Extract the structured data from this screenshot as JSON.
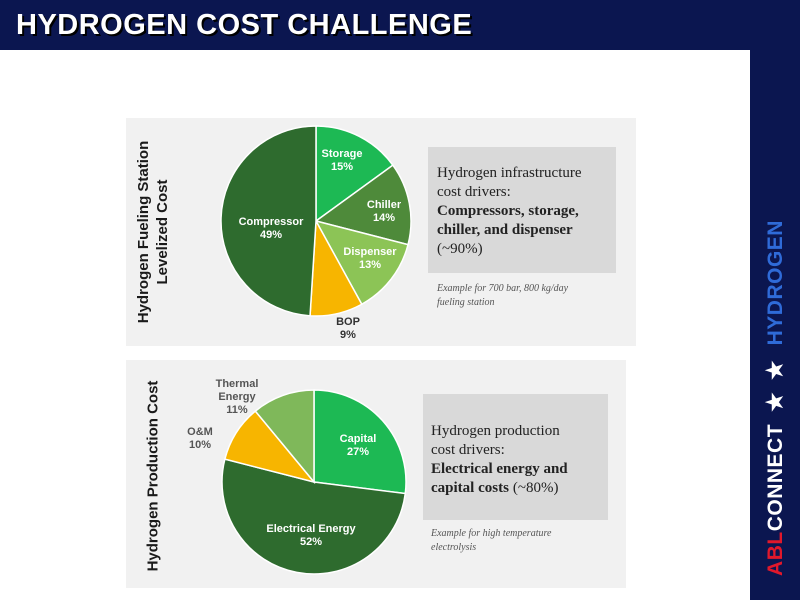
{
  "header": {
    "title": "HYDROGEN COST CHALLENGE"
  },
  "brand": {
    "abl": "ABL",
    "connect": "CONNECT",
    "stars": "★ ★",
    "product": "HYDROGEN"
  },
  "chart_data": [
    {
      "type": "pie",
      "title": "Hydrogen Fueling Station Levelized Cost",
      "categories": [
        "Storage",
        "Chiller",
        "Dispenser",
        "BOP",
        "Compressor"
      ],
      "values": [
        15,
        14,
        13,
        9,
        49
      ],
      "value_labels": [
        "15%",
        "14%",
        "13%",
        "9%",
        "49%"
      ],
      "colors": [
        "#1db954",
        "#4e8a3a",
        "#8cc456",
        "#f7b500",
        "#2e6b2e"
      ],
      "label_colors": [
        "#ffffff",
        "#ffffff",
        "#ffffff",
        "#333333",
        "#ffffff"
      ],
      "label_inside": [
        true,
        true,
        true,
        false,
        true
      ],
      "legend": "none"
    },
    {
      "type": "pie",
      "title": "Hydrogen Production Cost",
      "categories": [
        "Capital",
        "Electrical Energy",
        "O&M",
        "Thermal Energy"
      ],
      "values": [
        27,
        52,
        10,
        11
      ],
      "value_labels": [
        "27%",
        "52%",
        "10%",
        "11%"
      ],
      "colors": [
        "#1db954",
        "#2e6b2e",
        "#f7b500",
        "#7fb85a"
      ],
      "label_colors": [
        "#ffffff",
        "#ffffff",
        "#555555",
        "#555555"
      ],
      "label_inside": [
        true,
        true,
        false,
        false
      ],
      "legend": "none"
    }
  ],
  "panel1": {
    "ylabel_line1": "Hydrogen Fueling Station",
    "ylabel_line2": "Levelized Cost",
    "info_line1": "Hydrogen infrastructure",
    "info_line2": "cost drivers:",
    "info_bold": "Compressors, storage, chiller, and dispenser",
    "info_pct": "(~90%)",
    "note_line1": "Example for 700 bar, 800 kg/day",
    "note_line2": "fueling station"
  },
  "panel2": {
    "ylabel": "Hydrogen Production Cost",
    "info_line1": "Hydrogen production",
    "info_line2": "cost drivers:",
    "info_bold": "Electrical energy and capital costs",
    "info_pct": "(~80%)",
    "note_line1": "Example for high temperature",
    "note_line2": "electrolysis"
  }
}
